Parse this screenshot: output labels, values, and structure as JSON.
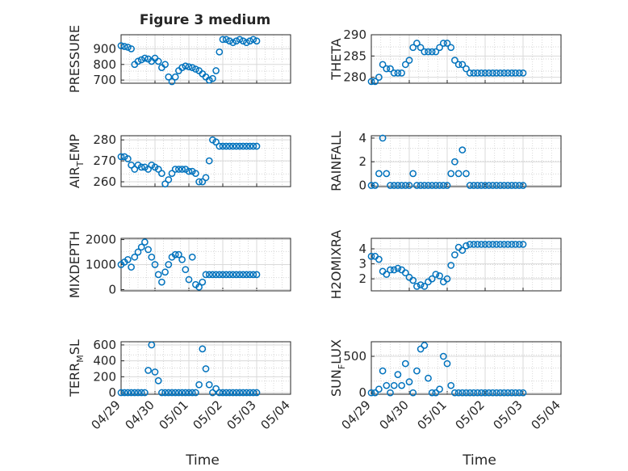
{
  "chart_data": [
    {
      "type": "scatter",
      "title": "Figure 3 medium",
      "ylabel": "PRESSURE",
      "ylabel_sub": "",
      "ylabel_tail": "",
      "yticks": [
        700,
        800,
        900
      ],
      "ylim": [
        680,
        990
      ],
      "xticks": [
        "04/29",
        "04/30",
        "05/01",
        "05/02",
        "05/03",
        "05/04"
      ],
      "xlim": [
        "2024-04-29",
        "2024-05-04"
      ],
      "x_days": [
        0.0,
        0.1,
        0.2,
        0.3,
        0.4,
        0.5,
        0.6,
        0.7,
        0.8,
        0.9,
        1.0,
        1.1,
        1.2,
        1.3,
        1.4,
        1.5,
        1.6,
        1.7,
        1.8,
        1.9,
        2.0,
        2.1,
        2.2,
        2.3,
        2.4,
        2.5,
        2.6,
        2.7,
        2.8,
        2.9,
        3.0,
        3.1,
        3.2,
        3.3,
        3.4,
        3.5,
        3.6,
        3.7,
        3.8,
        3.9,
        4.0
      ],
      "y": [
        920,
        915,
        910,
        900,
        800,
        820,
        830,
        840,
        835,
        820,
        840,
        820,
        780,
        800,
        720,
        690,
        720,
        760,
        780,
        790,
        785,
        780,
        770,
        760,
        740,
        720,
        700,
        710,
        760,
        880,
        960,
        960,
        950,
        940,
        950,
        960,
        950,
        940,
        950,
        960,
        950
      ],
      "grid": true
    },
    {
      "type": "scatter",
      "ylabel": "THETA",
      "ylabel_sub": "",
      "ylabel_tail": "",
      "yticks": [
        280,
        285,
        290
      ],
      "ylim": [
        278.6,
        290
      ],
      "xticks": [
        "04/29",
        "04/30",
        "05/01",
        "05/02",
        "05/03",
        "05/04"
      ],
      "xlim": [
        "2024-04-29",
        "2024-05-04"
      ],
      "x_days": [
        0.0,
        0.1,
        0.2,
        0.3,
        0.4,
        0.5,
        0.6,
        0.7,
        0.8,
        0.9,
        1.0,
        1.1,
        1.2,
        1.3,
        1.4,
        1.5,
        1.6,
        1.7,
        1.8,
        1.9,
        2.0,
        2.1,
        2.2,
        2.3,
        2.4,
        2.5,
        2.6,
        2.7,
        2.8,
        2.9,
        3.0,
        3.1,
        3.2,
        3.3,
        3.4,
        3.5,
        3.6,
        3.7,
        3.8,
        3.9,
        4.0
      ],
      "y": [
        279,
        279,
        280,
        283,
        282,
        282,
        281,
        281,
        281,
        283,
        284,
        287,
        288,
        287,
        286,
        286,
        286,
        286,
        287,
        288,
        288,
        287,
        284,
        283,
        283,
        282,
        281,
        281,
        281,
        281,
        281,
        281,
        281,
        281,
        281,
        281,
        281,
        281,
        281,
        281,
        281
      ],
      "grid": true
    },
    {
      "type": "scatter",
      "ylabel": "AIR",
      "ylabel_sub": "T",
      "ylabel_tail": "EMP",
      "yticks": [
        260,
        270,
        280
      ],
      "ylim": [
        257.7,
        282
      ],
      "xticks": [
        "04/29",
        "04/30",
        "05/01",
        "05/02",
        "05/03",
        "05/04"
      ],
      "xlim": [
        "2024-04-29",
        "2024-05-04"
      ],
      "x_days": [
        0.0,
        0.1,
        0.2,
        0.3,
        0.4,
        0.5,
        0.6,
        0.7,
        0.8,
        0.9,
        1.0,
        1.1,
        1.2,
        1.3,
        1.4,
        1.5,
        1.6,
        1.7,
        1.8,
        1.9,
        2.0,
        2.1,
        2.2,
        2.3,
        2.4,
        2.5,
        2.6,
        2.7,
        2.8,
        2.9,
        3.0,
        3.1,
        3.2,
        3.3,
        3.4,
        3.5,
        3.6,
        3.7,
        3.8,
        3.9,
        4.0
      ],
      "y": [
        272,
        272,
        271,
        268,
        266,
        268,
        267,
        267,
        266,
        268,
        267,
        266,
        264,
        259,
        261,
        264,
        266,
        266,
        266,
        266,
        265,
        265,
        264,
        260,
        260,
        262,
        270,
        280,
        279,
        277,
        277,
        277,
        277,
        277,
        277,
        277,
        277,
        277,
        277,
        277,
        277
      ],
      "grid": true
    },
    {
      "type": "scatter",
      "ylabel": "RAINFALL",
      "ylabel_sub": "",
      "ylabel_tail": "",
      "yticks": [
        0,
        2,
        4
      ],
      "ylim": [
        -0.1,
        4.2
      ],
      "xticks": [
        "04/29",
        "04/30",
        "05/01",
        "05/02",
        "05/03",
        "05/04"
      ],
      "xlim": [
        "2024-04-29",
        "2024-05-04"
      ],
      "x_days": [
        0.0,
        0.1,
        0.2,
        0.3,
        0.4,
        0.5,
        0.6,
        0.7,
        0.8,
        0.9,
        1.0,
        1.1,
        1.2,
        1.3,
        1.4,
        1.5,
        1.6,
        1.7,
        1.8,
        1.9,
        2.0,
        2.1,
        2.2,
        2.3,
        2.4,
        2.5,
        2.6,
        2.7,
        2.8,
        2.9,
        3.0,
        3.1,
        3.2,
        3.3,
        3.4,
        3.5,
        3.6,
        3.7,
        3.8,
        3.9,
        4.0
      ],
      "y": [
        0,
        0,
        1,
        4,
        1,
        0,
        0,
        0,
        0,
        0,
        0,
        1,
        0,
        0,
        0,
        0,
        0,
        0,
        0,
        0,
        0,
        1,
        2,
        1,
        3,
        1,
        0,
        0,
        0,
        0,
        0,
        0,
        0,
        0,
        0,
        0,
        0,
        0,
        0,
        0,
        0
      ],
      "grid": true
    },
    {
      "type": "scatter",
      "ylabel": "MIXDEPTH",
      "ylabel_sub": "",
      "ylabel_tail": "",
      "yticks": [
        0,
        1000,
        2000
      ],
      "ylim": [
        -50,
        2050
      ],
      "xticks": [
        "04/29",
        "04/30",
        "05/01",
        "05/02",
        "05/03",
        "05/04"
      ],
      "xlim": [
        "2024-04-29",
        "2024-05-04"
      ],
      "x_days": [
        0.0,
        0.1,
        0.2,
        0.3,
        0.4,
        0.5,
        0.6,
        0.7,
        0.8,
        0.9,
        1.0,
        1.1,
        1.2,
        1.3,
        1.4,
        1.5,
        1.6,
        1.7,
        1.8,
        1.9,
        2.0,
        2.1,
        2.2,
        2.3,
        2.4,
        2.5,
        2.6,
        2.7,
        2.8,
        2.9,
        3.0,
        3.1,
        3.2,
        3.3,
        3.4,
        3.5,
        3.6,
        3.7,
        3.8,
        3.9,
        4.0
      ],
      "y": [
        1000,
        1100,
        1200,
        900,
        1300,
        1500,
        1700,
        1900,
        1600,
        1300,
        1000,
        600,
        300,
        700,
        1000,
        1300,
        1400,
        1400,
        1200,
        800,
        400,
        1300,
        200,
        100,
        300,
        600,
        600,
        600,
        600,
        600,
        600,
        600,
        600,
        600,
        600,
        600,
        600,
        600,
        600,
        600,
        600
      ],
      "grid": true
    },
    {
      "type": "scatter",
      "ylabel": "H2OMIXRA",
      "ylabel_sub": "",
      "ylabel_tail": "",
      "yticks": [
        2,
        3,
        4
      ],
      "ylim": [
        1.2,
        4.7
      ],
      "xticks": [
        "04/29",
        "04/30",
        "05/01",
        "05/02",
        "05/03",
        "05/04"
      ],
      "xlim": [
        "2024-04-29",
        "2024-05-04"
      ],
      "x_days": [
        0.0,
        0.1,
        0.2,
        0.3,
        0.4,
        0.5,
        0.6,
        0.7,
        0.8,
        0.9,
        1.0,
        1.1,
        1.2,
        1.3,
        1.4,
        1.5,
        1.6,
        1.7,
        1.8,
        1.9,
        2.0,
        2.1,
        2.2,
        2.3,
        2.4,
        2.5,
        2.6,
        2.7,
        2.8,
        2.9,
        3.0,
        3.1,
        3.2,
        3.3,
        3.4,
        3.5,
        3.6,
        3.7,
        3.8,
        3.9,
        4.0
      ],
      "y": [
        3.5,
        3.5,
        3.3,
        2.5,
        2.3,
        2.6,
        2.6,
        2.7,
        2.6,
        2.4,
        2.1,
        1.9,
        1.5,
        1.6,
        1.5,
        1.8,
        2.0,
        2.3,
        2.2,
        1.8,
        2.0,
        2.9,
        3.6,
        4.1,
        3.9,
        4.2,
        4.3,
        4.3,
        4.3,
        4.3,
        4.3,
        4.3,
        4.3,
        4.3,
        4.3,
        4.3,
        4.3,
        4.3,
        4.3,
        4.3,
        4.3
      ],
      "grid": true
    },
    {
      "type": "scatter",
      "ylabel": "TERR",
      "ylabel_sub": "M",
      "ylabel_tail": "SL",
      "yticks": [
        0,
        200,
        400,
        600
      ],
      "ylim": [
        -20,
        640
      ],
      "xticks": [
        "04/29",
        "04/30",
        "05/01",
        "05/02",
        "05/03",
        "05/04"
      ],
      "xlim": [
        "2024-04-29",
        "2024-05-04"
      ],
      "x_days": [
        0.0,
        0.1,
        0.2,
        0.3,
        0.4,
        0.5,
        0.6,
        0.7,
        0.8,
        0.9,
        1.0,
        1.1,
        1.2,
        1.3,
        1.4,
        1.5,
        1.6,
        1.7,
        1.8,
        1.9,
        2.0,
        2.1,
        2.2,
        2.3,
        2.4,
        2.5,
        2.6,
        2.7,
        2.8,
        2.9,
        3.0,
        3.1,
        3.2,
        3.3,
        3.4,
        3.5,
        3.6,
        3.7,
        3.8,
        3.9,
        4.0
      ],
      "y": [
        0,
        0,
        0,
        0,
        0,
        0,
        0,
        0,
        280,
        600,
        260,
        150,
        0,
        0,
        0,
        0,
        0,
        0,
        0,
        0,
        0,
        0,
        0,
        100,
        550,
        300,
        100,
        0,
        50,
        0,
        0,
        0,
        0,
        0,
        0,
        0,
        0,
        0,
        0,
        0,
        0
      ],
      "grid": true
    },
    {
      "type": "scatter",
      "ylabel": "SUN",
      "ylabel_sub": "F",
      "ylabel_tail": "LUX",
      "yticks": [
        0,
        500
      ],
      "ylim": [
        -20,
        700
      ],
      "xticks": [
        "04/29",
        "04/30",
        "05/01",
        "05/02",
        "05/03",
        "05/04"
      ],
      "xlim": [
        "2024-04-29",
        "2024-05-04"
      ],
      "x_days": [
        0.0,
        0.1,
        0.2,
        0.3,
        0.4,
        0.5,
        0.6,
        0.7,
        0.8,
        0.9,
        1.0,
        1.1,
        1.2,
        1.3,
        1.4,
        1.5,
        1.6,
        1.7,
        1.8,
        1.9,
        2.0,
        2.1,
        2.2,
        2.3,
        2.4,
        2.5,
        2.6,
        2.7,
        2.8,
        2.9,
        3.0,
        3.1,
        3.2,
        3.3,
        3.4,
        3.5,
        3.6,
        3.7,
        3.8,
        3.9,
        4.0
      ],
      "y": [
        0,
        0,
        50,
        300,
        100,
        0,
        100,
        250,
        100,
        400,
        150,
        0,
        300,
        600,
        650,
        200,
        0,
        0,
        50,
        500,
        400,
        100,
        0,
        0,
        0,
        0,
        0,
        0,
        0,
        0,
        0,
        0,
        0,
        0,
        0,
        0,
        0,
        0,
        0,
        0,
        0
      ],
      "grid": true
    }
  ],
  "xlabel": "Time"
}
